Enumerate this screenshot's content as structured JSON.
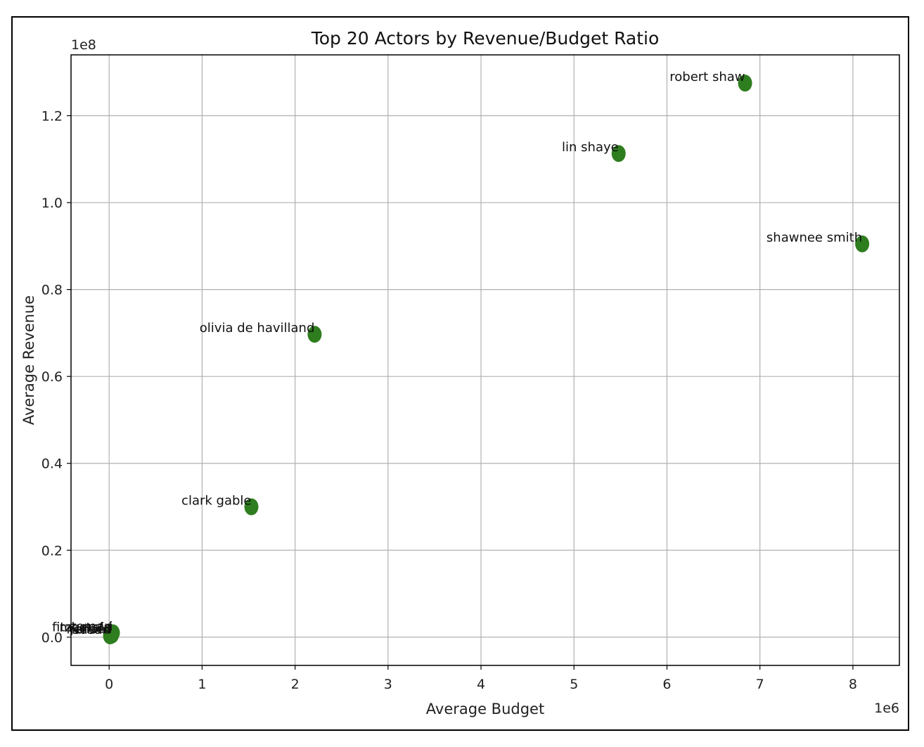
{
  "chart_data": {
    "type": "scatter",
    "title": "Top 20 Actors by Revenue/Budget Ratio",
    "xlabel": "Average Budget",
    "ylabel": "Average Revenue",
    "x_offset_label": "1e6",
    "y_offset_label": "1e8",
    "xlim": [
      -0.41,
      8.5
    ],
    "ylim": [
      -0.065,
      1.34
    ],
    "x_ticks": [
      0,
      1,
      2,
      3,
      4,
      5,
      6,
      7,
      8
    ],
    "y_ticks": [
      0.0,
      0.2,
      0.4,
      0.6,
      0.8,
      1.0,
      1.2
    ],
    "x_tick_labels": [
      "0",
      "1",
      "2",
      "3",
      "4",
      "5",
      "6",
      "7",
      "8"
    ],
    "y_tick_labels": [
      "0.0",
      "0.2",
      "0.4",
      "0.6",
      "0.8",
      "1.0",
      "1.2"
    ],
    "grid": true,
    "marker_color": "#2e7d1e",
    "points": [
      {
        "label": "robert shaw",
        "x": 6.84,
        "y": 1.275
      },
      {
        "label": "lin shaye",
        "x": 5.48,
        "y": 1.113
      },
      {
        "label": "shawnee smith",
        "x": 8.1,
        "y": 0.905
      },
      {
        "label": "olivia de havilland",
        "x": 2.21,
        "y": 0.697
      },
      {
        "label": "clark gable",
        "x": 1.53,
        "y": 0.3
      },
      {
        "label": "mostafa",
        "x": 0.02,
        "y": 0.008
      },
      {
        "label": "fitzgerald",
        "x": 0.03,
        "y": 0.009
      },
      {
        "label": "tomari",
        "x": 0.04,
        "y": 0.01
      },
      {
        "label": "susan",
        "x": 0.01,
        "y": 0.003
      },
      {
        "label": "richard",
        "x": 0.02,
        "y": 0.004
      },
      {
        "label": "jensen",
        "x": 0.03,
        "y": 0.005
      }
    ]
  }
}
